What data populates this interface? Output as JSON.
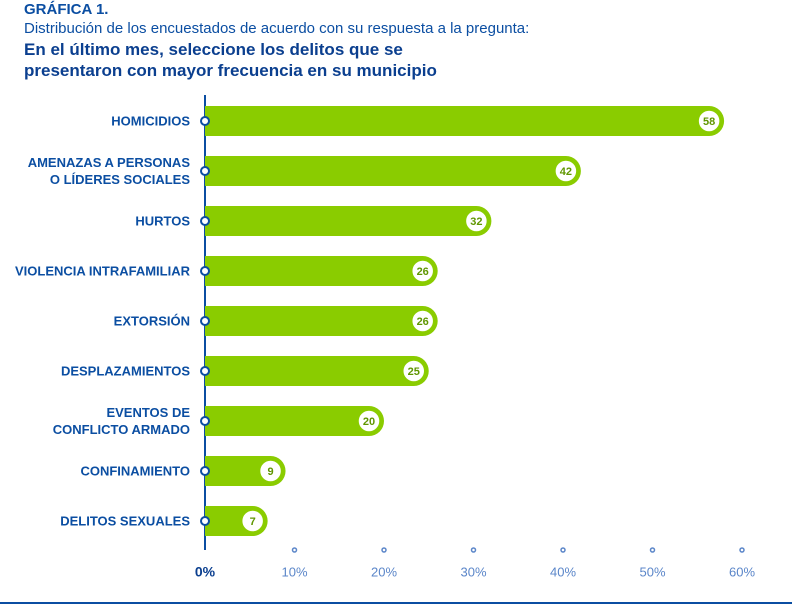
{
  "chart_data": {
    "type": "bar",
    "orientation": "horizontal",
    "title": "GRÁFICA 1.",
    "subtitle": "Distribución de los encuestados de acuerdo con su respuesta a la pregunta:",
    "question": "En el último mes, seleccione los delitos que se\npresentaron con mayor frecuencia en su municipio",
    "categories": [
      "HOMICIDIOS",
      "AMENAZAS A PERSONAS\nO LÍDERES SOCIALES",
      "HURTOS",
      "VIOLENCIA INTRAFAMILIAR",
      "EXTORSIÓN",
      "DESPLAZAMIENTOS",
      "EVENTOS DE\nCONFLICTO ARMADO",
      "CONFINAMIENTO",
      "DELITOS SEXUALES"
    ],
    "values": [
      58,
      42,
      32,
      26,
      26,
      25,
      20,
      9,
      7
    ],
    "color": "#8acc00",
    "xlim": [
      0,
      60
    ],
    "xticks": [
      {
        "value": 0,
        "label": "0%"
      },
      {
        "value": 10,
        "label": "10%"
      },
      {
        "value": 20,
        "label": "20%"
      },
      {
        "value": 30,
        "label": "30%"
      },
      {
        "value": 40,
        "label": "40%"
      },
      {
        "value": 50,
        "label": "50%"
      },
      {
        "value": 60,
        "label": "60%"
      }
    ]
  }
}
